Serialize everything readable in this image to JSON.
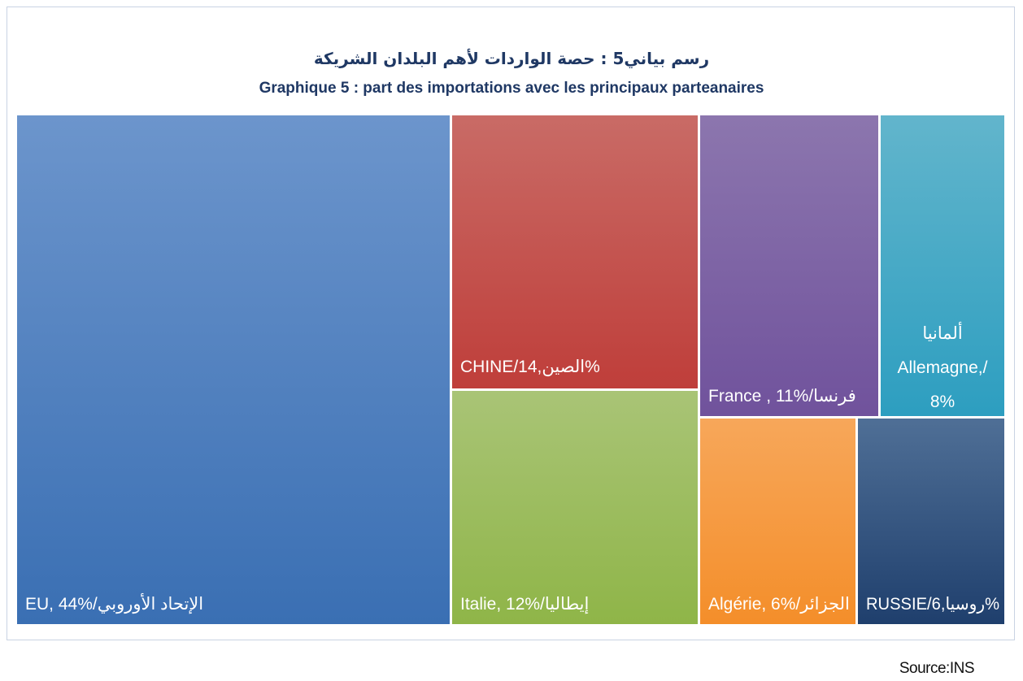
{
  "chart_data": {
    "type": "treemap",
    "title_ar": "رسم بياني5 :  حصة الواردات لأهم البلدان الشريكة",
    "title_fr": "Graphique 5 : part des importations avec les principaux parteanaires",
    "series": [
      {
        "label": "EU, 44%/الإتحاد الأوروبي",
        "value": 44,
        "color_top": "#6c95cc",
        "color_bottom": "#3a6fb3"
      },
      {
        "label": "CHINE/14,الصين%",
        "value": 14,
        "color_top": "#c96b66",
        "color_bottom": "#bf3e3a"
      },
      {
        "label": "Italie, 12%/إيطاليا",
        "value": 12,
        "color_top": "#a9c476",
        "color_bottom": "#8fb548"
      },
      {
        "label": "France  ,  11%/فرنسا",
        "value": 11,
        "color_top": "#8c76ae",
        "color_bottom": "#70529c"
      },
      {
        "lines": [
          "ألمانيا",
          "Allemagne,/",
          "8%"
        ],
        "label": "ألمانيا Allemagne,/ 8%",
        "value": 8,
        "color_top": "#62b5cc",
        "color_bottom": "#2d9ec0"
      },
      {
        "label": "Algérie, 6%/الجزائر",
        "value": 6,
        "color_top": "#f7a75a",
        "color_bottom": "#f48e2a"
      },
      {
        "label": "RUSSIE/6,روسيا%",
        "value": 6,
        "color_top": "#4f6f96",
        "color_bottom": "#1f3f6d"
      }
    ]
  },
  "source": "Source:INS"
}
